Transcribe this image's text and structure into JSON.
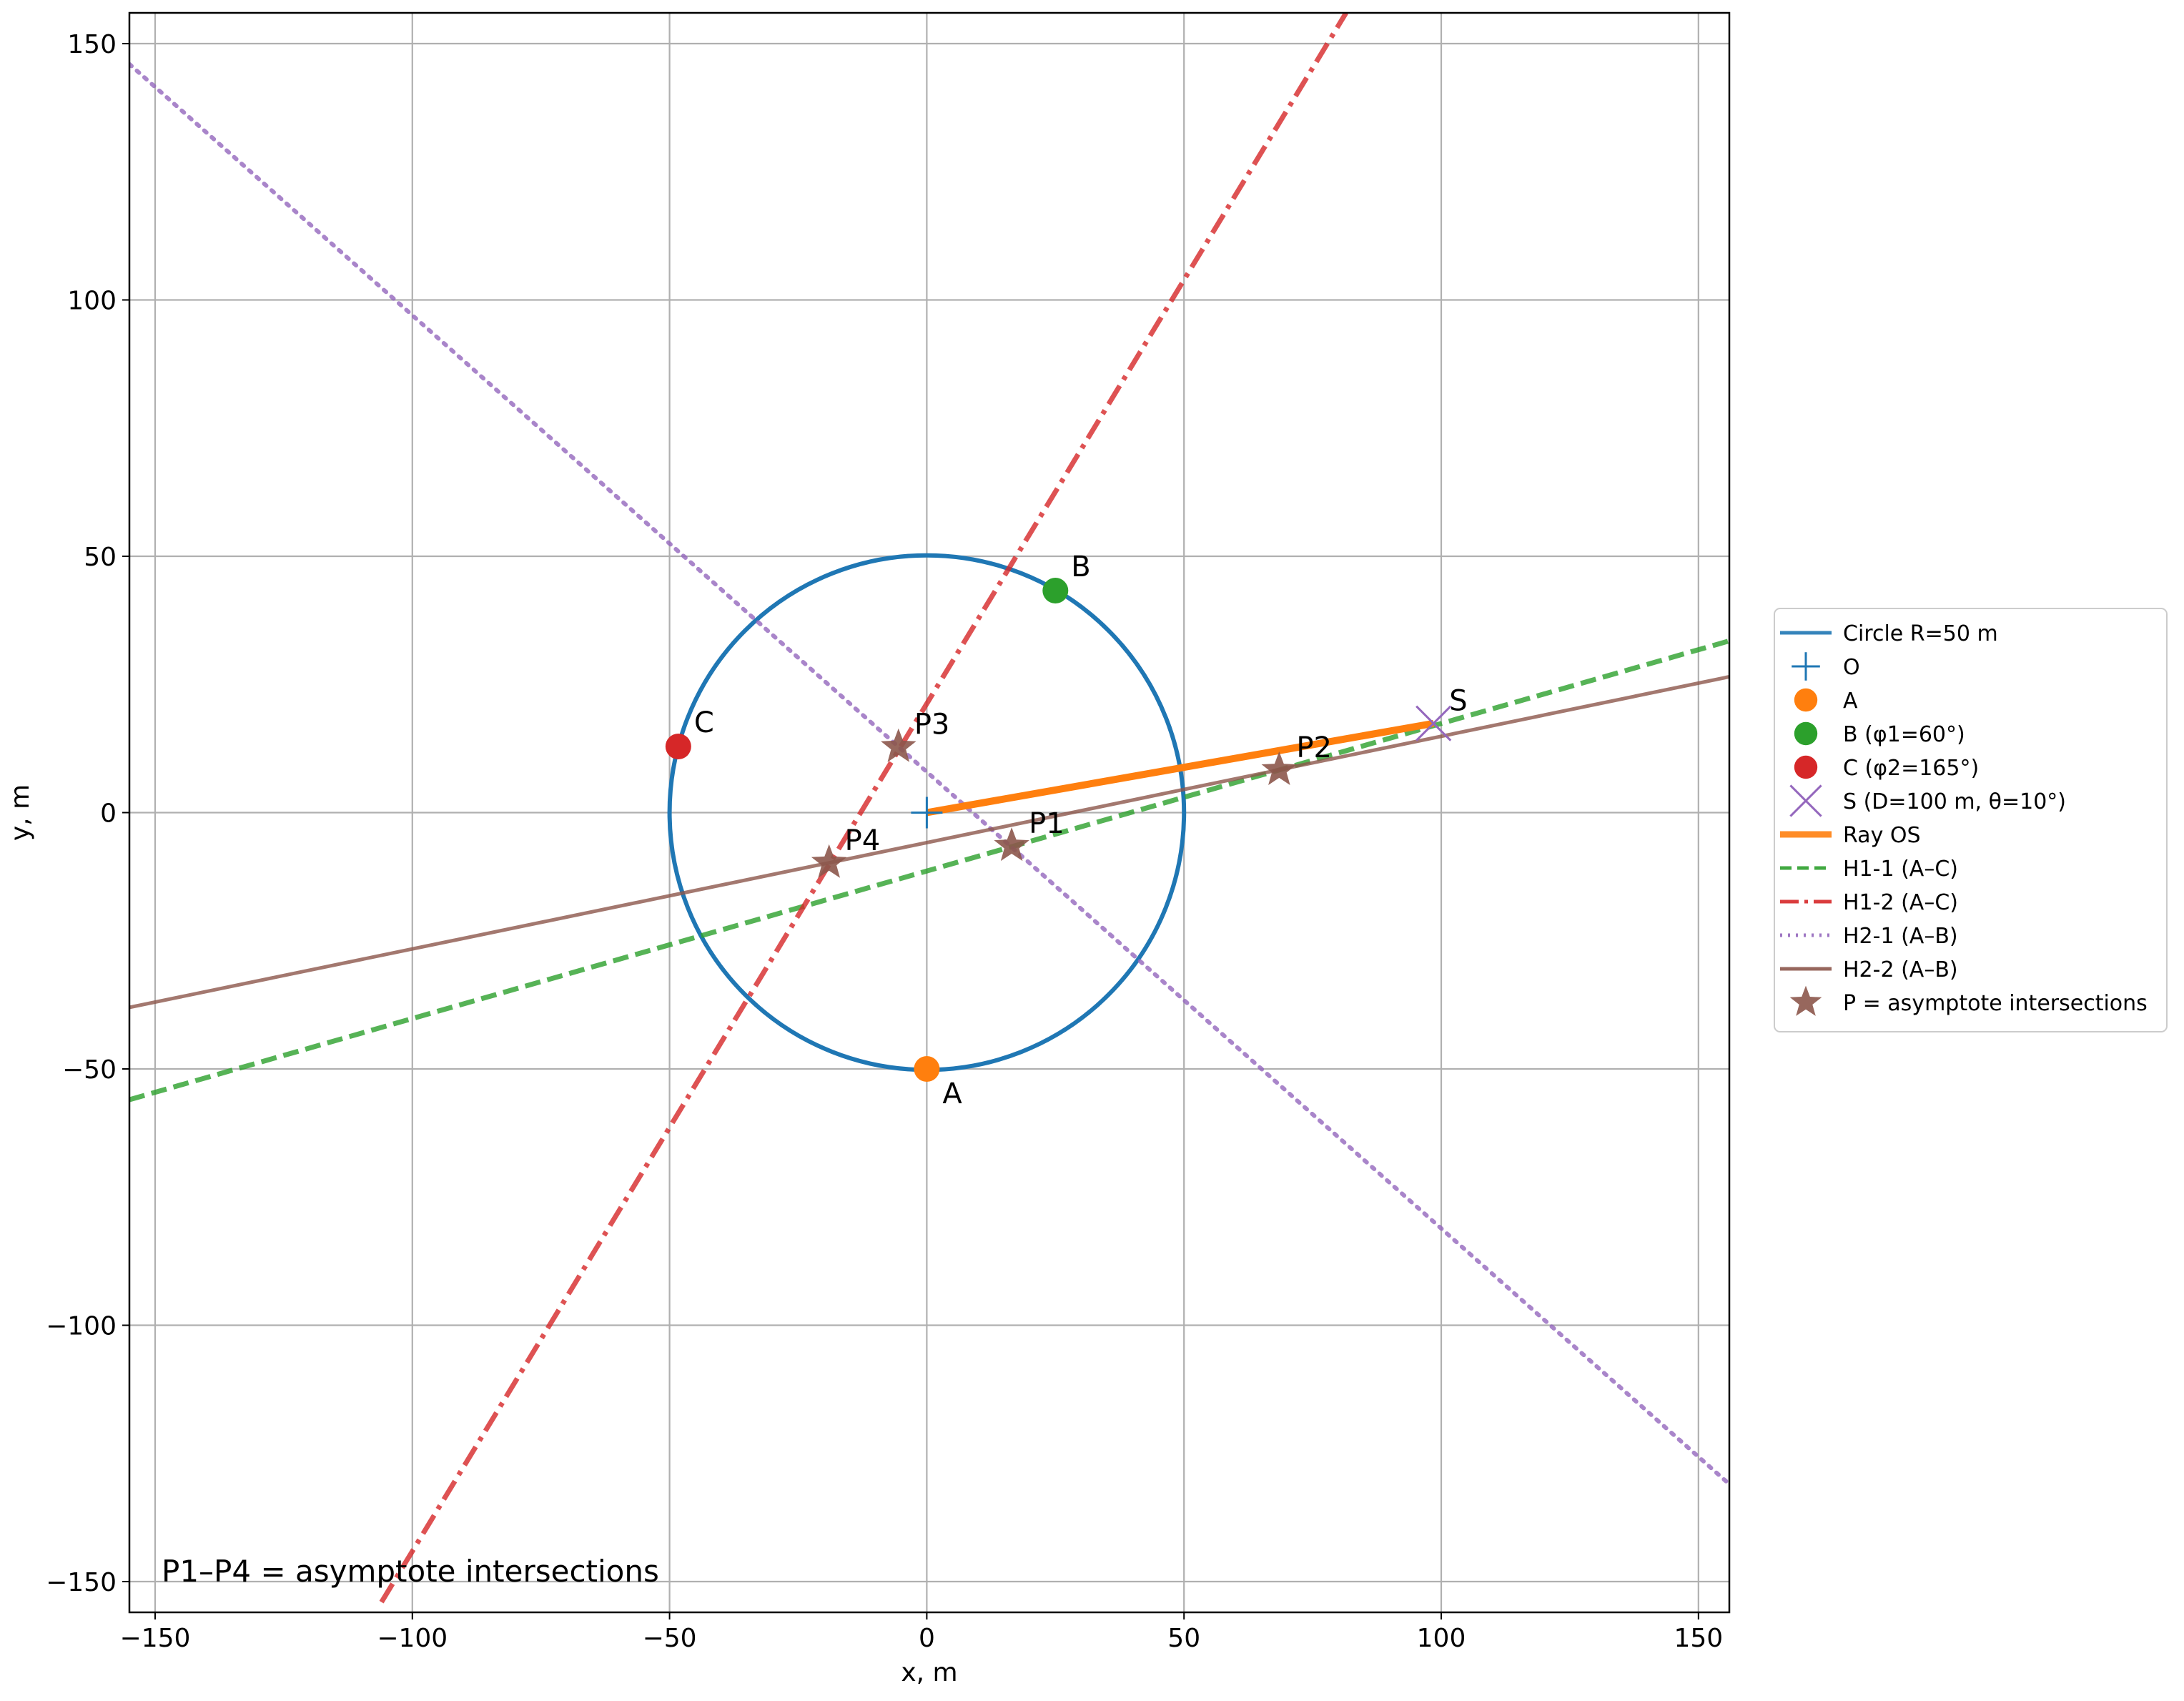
{
  "chart_data": {
    "type": "line",
    "xlabel": "x, m",
    "ylabel": "y, m",
    "xlim": [
      -155,
      156
    ],
    "ylim": [
      -156,
      156
    ],
    "grid": true,
    "x_ticks": [
      -150,
      -100,
      -50,
      0,
      50,
      100,
      150
    ],
    "y_ticks": [
      -150,
      -100,
      -50,
      0,
      50,
      100,
      150
    ],
    "x_tick_labels": [
      "−150",
      "−100",
      "−50",
      "0",
      "50",
      "100",
      "150"
    ],
    "y_tick_labels": [
      "−150",
      "−100",
      "−50",
      "0",
      "50",
      "100",
      "150"
    ],
    "annotation": "P1–P4 = asymptote intersections",
    "legend_position": "center-right outside",
    "circle": {
      "center": [
        0,
        0
      ],
      "radius": 50,
      "color": "#1f77b4"
    },
    "lines": [
      {
        "id": "h1_1",
        "points": [
          [
            -155,
            -56
          ],
          [
            156,
            33.5
          ]
        ],
        "color": "#2ca02c",
        "style": "dashed"
      },
      {
        "id": "h1_2",
        "points": [
          [
            -106,
            -154
          ],
          [
            81.5,
            156
          ]
        ],
        "color": "#d62728",
        "style": "dashdot"
      },
      {
        "id": "h2_1",
        "points": [
          [
            -155,
            146
          ],
          [
            156,
            -131
          ]
        ],
        "color": "#9467bd",
        "style": "dotted"
      },
      {
        "id": "h2_2",
        "points": [
          [
            -155,
            -38
          ],
          [
            156,
            26.5
          ]
        ],
        "color": "#8c564b",
        "style": "solid"
      },
      {
        "id": "ray_os",
        "points": [
          [
            0,
            0
          ],
          [
            98.5,
            17.4
          ]
        ],
        "color": "#ff7f0e",
        "style": "solid"
      }
    ],
    "points": [
      {
        "id": "O",
        "label": "",
        "x": 0,
        "y": 0,
        "marker": "plus",
        "color": "#1f77b4"
      },
      {
        "id": "A",
        "label": "A",
        "x": 0,
        "y": -50,
        "marker": "circle",
        "color": "#ff7f0e"
      },
      {
        "id": "B",
        "label": "B",
        "x": 25,
        "y": 43.3,
        "marker": "circle",
        "color": "#2ca02c"
      },
      {
        "id": "C",
        "label": "C",
        "x": -48.3,
        "y": 12.9,
        "marker": "circle",
        "color": "#d62728"
      },
      {
        "id": "S",
        "label": "S",
        "x": 98.5,
        "y": 17.4,
        "marker": "x",
        "color": "#9467bd"
      },
      {
        "id": "P1",
        "label": "P1",
        "x": 16.5,
        "y": -6.5,
        "marker": "star",
        "color": "#8c564b"
      },
      {
        "id": "P2",
        "label": "P2",
        "x": 68.5,
        "y": 8.3,
        "marker": "star",
        "color": "#8c564b"
      },
      {
        "id": "P3",
        "label": "P3",
        "x": -5.5,
        "y": 12.8,
        "marker": "star",
        "color": "#8c564b"
      },
      {
        "id": "P4",
        "label": "P4",
        "x": -19,
        "y": -9.8,
        "marker": "star",
        "color": "#8c564b"
      }
    ],
    "legend": [
      {
        "label": "Circle R=50 m",
        "color": "#1f77b4",
        "kind": "line",
        "style": "solid"
      },
      {
        "label": "O",
        "color": "#1f77b4",
        "kind": "plus"
      },
      {
        "label": "A",
        "color": "#ff7f0e",
        "kind": "circle"
      },
      {
        "label": "B (φ1=60°)",
        "color": "#2ca02c",
        "kind": "circle"
      },
      {
        "label": "C (φ2=165°)",
        "color": "#d62728",
        "kind": "circle"
      },
      {
        "label": "S (D=100 m, θ=10°)",
        "color": "#9467bd",
        "kind": "x"
      },
      {
        "label": "Ray OS",
        "color": "#ff7f0e",
        "kind": "line",
        "style": "solid"
      },
      {
        "label": "H1-1 (A–C)",
        "color": "#2ca02c",
        "kind": "line",
        "style": "dashed"
      },
      {
        "label": "H1-2 (A–C)",
        "color": "#d62728",
        "kind": "line",
        "style": "dashdot"
      },
      {
        "label": "H2-1 (A–B)",
        "color": "#9467bd",
        "kind": "line",
        "style": "dotted"
      },
      {
        "label": "H2-2 (A–B)",
        "color": "#8c564b",
        "kind": "line",
        "style": "solid"
      },
      {
        "label": "P = asymptote intersections",
        "color": "#8c564b",
        "kind": "star"
      }
    ]
  }
}
